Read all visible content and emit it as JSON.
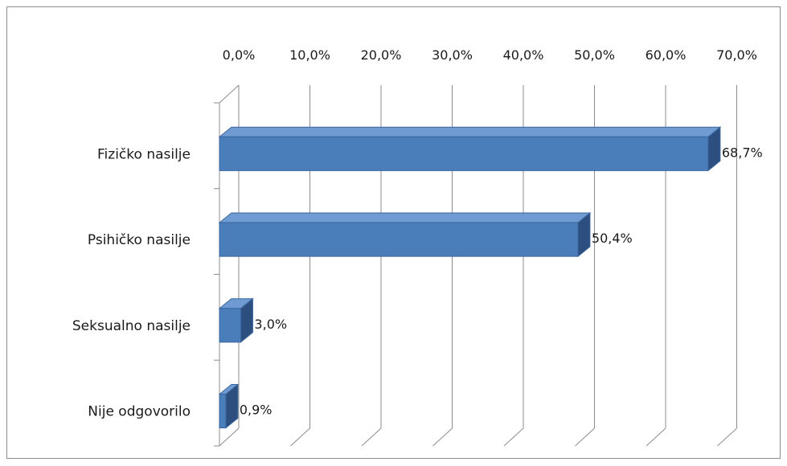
{
  "chart_data": {
    "type": "bar",
    "orientation": "horizontal",
    "style": "3d-clustered",
    "categories": [
      "Fizičko nasilje",
      "Psihičko nasilje",
      "Seksualno nasilje",
      "Nije odgovorilo"
    ],
    "values": [
      68.7,
      50.4,
      3.0,
      0.9
    ],
    "value_labels": [
      "68,7%",
      "50,4%",
      "3,0%",
      "0,9%"
    ],
    "x_ticks": [
      "0,0%",
      "10,0%",
      "20,0%",
      "30,0%",
      "40,0%",
      "50,0%",
      "60,0%",
      "70,0%"
    ],
    "xlim": [
      0,
      70
    ],
    "x_axis_position": "top",
    "grid": true,
    "legend": "none",
    "title": "",
    "xlabel": "",
    "ylabel": "",
    "colors": {
      "bar_front": "#4a7ebb",
      "bar_top": "#6f9bd2",
      "bar_side": "#2d4f7f",
      "bar_edge": "#3a669e",
      "grid": "#8c8c8c",
      "frame": "#8c8c8c"
    }
  }
}
